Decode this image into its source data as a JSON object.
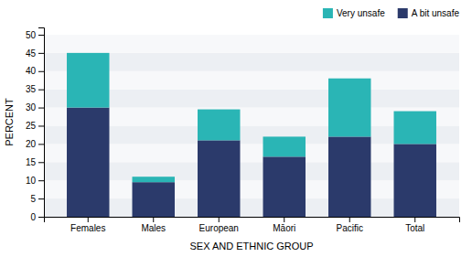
{
  "chart_data": {
    "type": "bar",
    "stacked": true,
    "categories": [
      "Females",
      "Males",
      "European",
      "Māori",
      "Pacific",
      "Total"
    ],
    "series": [
      {
        "name": "A bit unsafe",
        "color": "#2b3a6b",
        "values": [
          30,
          9.5,
          21,
          16.5,
          22,
          20
        ]
      },
      {
        "name": "Very unsafe",
        "color": "#2ab5b5",
        "values": [
          15,
          1.5,
          8.5,
          5.5,
          16,
          9
        ]
      }
    ],
    "xlabel": "SEX AND ETHNIC GROUP",
    "ylabel": "PERCENT",
    "ylim": [
      0,
      52
    ],
    "yticks": [
      0,
      5,
      10,
      15,
      20,
      25,
      30,
      35,
      40,
      45,
      50
    ],
    "grid": true,
    "legend": "upper right"
  }
}
